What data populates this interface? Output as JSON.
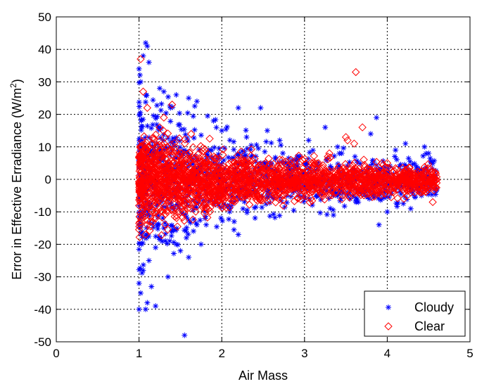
{
  "chart_data": {
    "type": "scatter",
    "xlabel": "Air Mass",
    "ylabel_main": "Error in Effective Erradiance (W/m",
    "ylabel_sup": "2",
    "ylabel_close": ")",
    "xlim": [
      0,
      5
    ],
    "ylim": [
      -50,
      50
    ],
    "xticks": [
      "0",
      "1",
      "2",
      "3",
      "4",
      "5"
    ],
    "yticks": [
      "-50",
      "-40",
      "-30",
      "-20",
      "-10",
      "0",
      "10",
      "20",
      "30",
      "40",
      "50"
    ],
    "grid": true,
    "legend_position": "bottom-right",
    "series": [
      {
        "name": "Cloudy",
        "marker": "asterisk",
        "color": "#0000ff",
        "outliers": [
          [
            1.08,
            42
          ],
          [
            1.1,
            41
          ],
          [
            1.05,
            38
          ],
          [
            1.12,
            36
          ],
          [
            1.0,
            34
          ],
          [
            1.02,
            30
          ],
          [
            1.25,
            28
          ],
          [
            1.3,
            27
          ],
          [
            1.45,
            26
          ],
          [
            1.6,
            25
          ],
          [
            1.7,
            24
          ],
          [
            1.38,
            22
          ],
          [
            2.2,
            22
          ],
          [
            2.47,
            22
          ],
          [
            1.9,
            18
          ],
          [
            2.0,
            15
          ],
          [
            3.87,
            19
          ],
          [
            3.25,
            16
          ],
          [
            3.05,
            12
          ],
          [
            2.7,
            12
          ],
          [
            3.4,
            10
          ],
          [
            4.22,
            11
          ],
          [
            4.45,
            10
          ],
          [
            4.5,
            8
          ],
          [
            3.45,
            8
          ],
          [
            2.3,
            13
          ],
          [
            2.55,
            15
          ],
          [
            4.1,
            9
          ],
          [
            3.8,
            14
          ],
          [
            1.05,
            -28
          ],
          [
            1.0,
            -32
          ],
          [
            1.02,
            -35
          ],
          [
            1.1,
            -38
          ],
          [
            1.08,
            -40
          ],
          [
            1.0,
            -40
          ],
          [
            1.2,
            -39
          ],
          [
            1.35,
            -30
          ],
          [
            1.55,
            -48
          ],
          [
            1.6,
            -24
          ],
          [
            1.5,
            -22
          ],
          [
            1.75,
            -20
          ],
          [
            2.2,
            -17
          ],
          [
            2.15,
            -13
          ],
          [
            3.9,
            -14
          ],
          [
            4.0,
            -10
          ],
          [
            1.25,
            -18
          ],
          [
            1.4,
            -16
          ],
          [
            1.7,
            -14
          ],
          [
            1.8,
            -12
          ],
          [
            2.1,
            -9
          ],
          [
            3.35,
            -11
          ],
          [
            3.65,
            -7
          ],
          [
            3.55,
            -6
          ],
          [
            1.15,
            -33
          ],
          [
            1.12,
            -25
          ],
          [
            1.2,
            -21
          ],
          [
            1.45,
            -20
          ],
          [
            1.3,
            -15
          ]
        ]
      },
      {
        "name": "Clear",
        "marker": "diamond",
        "color": "#ff0000",
        "outliers": [
          [
            1.02,
            37
          ],
          [
            3.62,
            33
          ],
          [
            1.05,
            27
          ],
          [
            1.1,
            22
          ],
          [
            1.3,
            19
          ],
          [
            1.25,
            16
          ],
          [
            3.5,
            13
          ],
          [
            3.52,
            12
          ],
          [
            3.7,
            16
          ],
          [
            3.6,
            11
          ],
          [
            1.4,
            23
          ],
          [
            1.08,
            -17
          ],
          [
            1.1,
            -14
          ],
          [
            1.2,
            -12
          ],
          [
            4.2,
            -6
          ],
          [
            4.55,
            -7
          ],
          [
            3.3,
            8
          ],
          [
            4.0,
            5
          ]
        ]
      }
    ]
  }
}
